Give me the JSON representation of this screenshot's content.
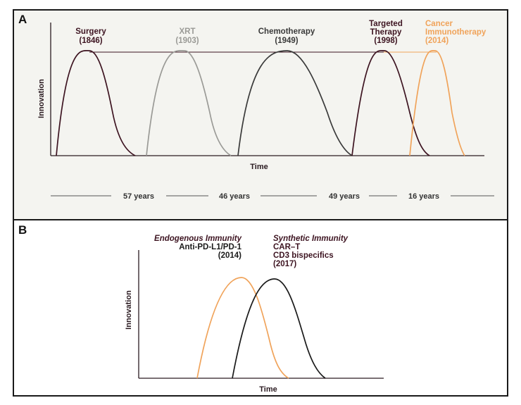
{
  "colors": {
    "maroon": "#3d1421",
    "gray": "#9a9a96",
    "dark_gray": "#3a3a3a",
    "orange": "#f0a35a",
    "panel_bg": "#f4f4f0",
    "border": "#1a1a1a"
  },
  "panel_a": {
    "letter": "A",
    "y_label": "Innovation",
    "x_label": "Time",
    "eras": [
      {
        "name": "Surgery",
        "year": "(1846)"
      },
      {
        "name": "XRT",
        "year": "(1903)"
      },
      {
        "name": "Chemotherapy",
        "year": "(1949)"
      },
      {
        "name_line1": "Targeted",
        "name_line2": "Therapy",
        "year": "(1998)"
      },
      {
        "name_line1": "Cancer",
        "name_line2": "Immunotherapy",
        "year": "(2014)"
      }
    ],
    "intervals": [
      "57 years",
      "46 years",
      "49 years",
      "16 years"
    ]
  },
  "panel_b": {
    "letter": "B",
    "y_label": "Innovation",
    "x_label": "Time",
    "endogenous": {
      "title": "Endogenous Immunity",
      "line1": "Anti-PD-L1/PD-1",
      "line2": "(2014)"
    },
    "synthetic": {
      "title": "Synthetic Immunity",
      "line1": "CAR–T",
      "line2": "CD3 bispecifics",
      "line3": "(2017)"
    }
  }
}
